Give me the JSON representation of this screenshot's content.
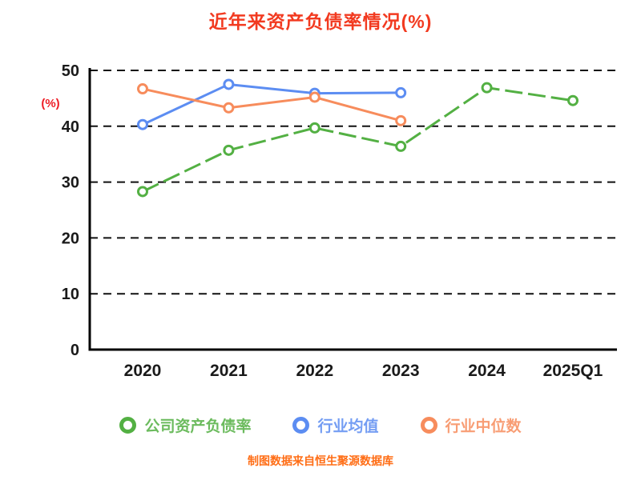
{
  "title": "近年来资产负债率情况(%)",
  "footer": "制图数据来自恒生聚源数据库",
  "y_axis_unit_label": "(%)",
  "colors": {
    "title": "#f23a20",
    "footer": "#ff6d15",
    "percent_label": "#ee1c25",
    "axis_line": "#000000",
    "axis_text": "#1a1a1a",
    "grid": "#111111",
    "marker_fill": "#ffffff"
  },
  "chart_data": {
    "type": "line",
    "title": "近年来资产负债率情况(%)",
    "xlabel": "",
    "ylabel": "(%)",
    "categories": [
      "2020",
      "2021",
      "2022",
      "2023",
      "2024",
      "2025Q1"
    ],
    "series": [
      {
        "name": "公司资产负债率",
        "color": "#53b043",
        "dash": "22 7",
        "values": [
          28.3,
          35.7,
          39.7,
          36.4,
          46.9,
          44.6
        ]
      },
      {
        "name": "行业均值",
        "color": "#5c8df2",
        "dash": "",
        "values": [
          40.3,
          47.5,
          45.9,
          46.0
        ]
      },
      {
        "name": "行业中位数",
        "color": "#f78c5c",
        "dash": "",
        "values": [
          46.7,
          43.3,
          45.2,
          41.0
        ]
      }
    ],
    "ylim": [
      0,
      50
    ],
    "yticks": [
      0,
      10,
      20,
      30,
      40,
      50
    ],
    "grid": "horizontal-dashed",
    "legend_position": "bottom"
  }
}
